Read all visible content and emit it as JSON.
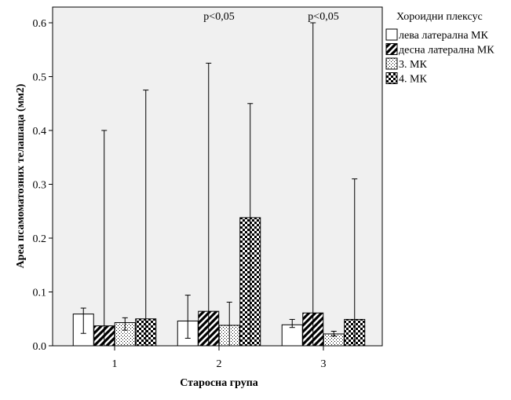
{
  "chart_data": {
    "type": "bar",
    "xlabel": "Старосна група",
    "ylabel": "Ареа псамоматозних телашаца (мм2)",
    "ylim": [
      0,
      0.6
    ],
    "yticks": [
      0.0,
      0.1,
      0.2,
      0.3,
      0.4,
      0.5,
      0.6
    ],
    "ytick_labels": [
      "0.0",
      "0.1",
      "0.2",
      "0.3",
      "0.4",
      "0.5",
      "0.6"
    ],
    "categories": [
      "1",
      "2",
      "3"
    ],
    "legend_title": "Хороидни плексус",
    "legend_position": "right",
    "grid": false,
    "series": [
      {
        "name": "лева латерална МК",
        "pattern": "empty",
        "values": [
          0.059,
          0.046,
          0.039
        ],
        "err_low": [
          0.023,
          0.014,
          0.034
        ],
        "err_high": [
          0.07,
          0.094,
          0.049
        ]
      },
      {
        "name": "десна латерална МК",
        "pattern": "diagonal",
        "values": [
          0.037,
          0.064,
          0.061
        ],
        "err_low": [
          0.0,
          0.0,
          0.0
        ],
        "err_high": [
          0.4,
          0.525,
          0.6
        ]
      },
      {
        "name": "3. МК",
        "pattern": "dotted",
        "values": [
          0.043,
          0.038,
          0.022
        ],
        "err_low": [
          0.029,
          0.0,
          0.018
        ],
        "err_high": [
          0.052,
          0.081,
          0.027
        ]
      },
      {
        "name": "4. МК",
        "pattern": "checker",
        "values": [
          0.05,
          0.238,
          0.049
        ],
        "err_low": [
          0.0,
          0.0,
          0.0
        ],
        "err_high": [
          0.475,
          0.45,
          0.31
        ]
      }
    ],
    "annotations": [
      {
        "category": "2",
        "text": "p<0,05"
      },
      {
        "category": "3",
        "text": "p<0,05"
      }
    ]
  }
}
